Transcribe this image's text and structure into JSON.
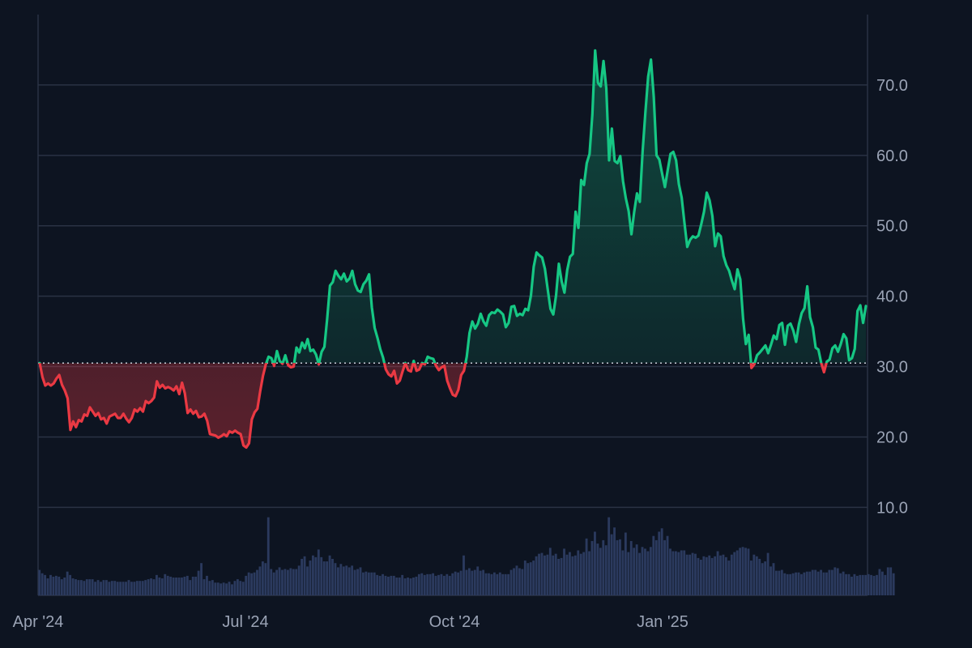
{
  "chart_data": {
    "type": "area",
    "title": "",
    "xlabel": "",
    "ylabel": "",
    "x_tick_labels": [
      "Apr '24",
      "Jul '24",
      "Oct '24",
      "Jan '25"
    ],
    "y_tick_labels": [
      "10.0",
      "20.0",
      "30.0",
      "40.0",
      "50.0",
      "60.0",
      "70.0"
    ],
    "y_ticks": [
      10,
      20,
      30,
      40,
      50,
      60,
      70
    ],
    "ylim": [
      -2.5,
      80
    ],
    "baseline": 30.5,
    "grid": true,
    "y_axis_side": "right",
    "colors": {
      "above": "#16c784",
      "below": "#ea3943",
      "grid": "#2a3244",
      "volume": "#2b3a5e",
      "baseline": "#c9ced8",
      "background": "#0d1421"
    },
    "series": [
      {
        "values": [
          30.5,
          28.5,
          27.3,
          27.6,
          27.3,
          27.6,
          28.3,
          28.8,
          27.4,
          26.6,
          25.5,
          21.0,
          22.2,
          21.4,
          22.4,
          22.2,
          23.2,
          23.0,
          24.2,
          23.6,
          23.0,
          23.4,
          22.5,
          22.7,
          21.9,
          22.9,
          23.1,
          23.3,
          22.7,
          22.7,
          23.3,
          22.6,
          22.1,
          22.7,
          23.9,
          23.6,
          24.1,
          23.6,
          25.1,
          24.8,
          25.1,
          25.6,
          27.9,
          27.0,
          27.4,
          26.9,
          27.1,
          26.9,
          26.6,
          27.2,
          26.1,
          27.7,
          26.2,
          23.4,
          23.9,
          23.3,
          23.7,
          22.8,
          22.9,
          23.3,
          22.3,
          20.4,
          20.3,
          20.2,
          19.9,
          20.1,
          20.4,
          20.1,
          20.8,
          20.6,
          20.9,
          20.6,
          20.4,
          18.8,
          18.5,
          19.1,
          22.5,
          23.5,
          24.0,
          26.5,
          28.7,
          30.3,
          31.4,
          31.2,
          30.1,
          32.2,
          30.8,
          30.4,
          31.6,
          30.2,
          29.9,
          30.0,
          32.7,
          32.0,
          33.4,
          32.6,
          33.9,
          32.2,
          32.4,
          31.7,
          30.3,
          32.1,
          32.8,
          36.8,
          41.5,
          42.0,
          43.6,
          42.9,
          42.4,
          43.2,
          42.1,
          42.5,
          43.6,
          41.7,
          40.8,
          40.6,
          41.7,
          42.2,
          43.1,
          38.4,
          35.5,
          34.1,
          32.5,
          31.3,
          29.6,
          28.9,
          28.6,
          29.4,
          27.6,
          28.0,
          29.3,
          30.5,
          29.5,
          29.3,
          30.8,
          29.4,
          29.6,
          30.5,
          30.3,
          31.4,
          31.2,
          31.1,
          30.1,
          29.5,
          29.9,
          30.1,
          28.0,
          26.9,
          26.0,
          25.8,
          26.7,
          28.8,
          29.4,
          31.4,
          34.8,
          36.4,
          35.4,
          36.1,
          37.5,
          36.4,
          35.8,
          37.3,
          37.7,
          37.6,
          38.1,
          37.8,
          37.4,
          35.6,
          36.2,
          38.5,
          38.6,
          37.2,
          37.5,
          37.3,
          38.2,
          38.0,
          40.1,
          44.2,
          46.2,
          45.8,
          45.5,
          43.9,
          41.0,
          38.2,
          37.4,
          40.1,
          44.6,
          42.1,
          40.5,
          43.7,
          45.6,
          46.0,
          52.0,
          49.7,
          56.5,
          55.8,
          58.9,
          60.2,
          65.8,
          74.9,
          70.3,
          69.8,
          73.4,
          69.5,
          59.3,
          63.8,
          59.2,
          58.9,
          59.9,
          56.3,
          53.9,
          52.1,
          48.8,
          52.0,
          54.6,
          53.4,
          60.5,
          66.1,
          71.2,
          73.6,
          68.3,
          60.0,
          59.4,
          57.4,
          55.5,
          57.9,
          60.2,
          60.5,
          59.3,
          55.9,
          54.0,
          50.4,
          47.0,
          48.0,
          48.5,
          48.3,
          48.6,
          50.2,
          52.0,
          54.7,
          53.6,
          51.4,
          47.1,
          48.9,
          48.5,
          45.7,
          44.4,
          43.6,
          42.2,
          41.0,
          43.8,
          42.4,
          36.8,
          33.2,
          34.5,
          29.8,
          30.3,
          31.6,
          32.0,
          32.5,
          33.0,
          31.9,
          33.1,
          34.4,
          33.9,
          35.9,
          36.2,
          33.1,
          35.8,
          36.1,
          35.1,
          33.5,
          36.0,
          37.6,
          38.3,
          41.4,
          37.0,
          35.6,
          32.7,
          32.4,
          30.5,
          29.2,
          30.7,
          31.0,
          32.6,
          33.0,
          32.1,
          33.2,
          34.6,
          34.0,
          30.9,
          31.2,
          32.5,
          37.9,
          38.7,
          36.2,
          38.6
        ]
      }
    ],
    "volume": [
      3.0,
      2.6,
      2.4,
      2.0,
      2.4,
      2.2,
      2.3,
      2.2,
      1.9,
      2.1,
      2.8,
      2.4,
      2.0,
      1.9,
      1.8,
      1.8,
      1.7,
      1.9,
      1.9,
      1.9,
      1.6,
      1.8,
      1.6,
      1.8,
      1.8,
      1.6,
      1.7,
      1.7,
      1.6,
      1.6,
      1.6,
      1.6,
      1.8,
      1.6,
      1.6,
      1.7,
      1.7,
      1.7,
      1.8,
      1.9,
      2.0,
      1.9,
      2.4,
      2.1,
      2.0,
      2.5,
      2.3,
      2.2,
      2.1,
      2.1,
      2.1,
      2.1,
      2.2,
      2.3,
      1.8,
      2.2,
      2.2,
      2.9,
      3.8,
      1.9,
      2.3,
      1.7,
      1.8,
      1.5,
      1.5,
      1.4,
      1.5,
      1.4,
      1.6,
      1.3,
      1.7,
      1.9,
      1.7,
      1.6,
      2.3,
      2.7,
      2.6,
      2.7,
      3.0,
      3.4,
      4.0,
      3.8,
      9.2,
      3.1,
      2.7,
      3.0,
      3.3,
      3.0,
      3.1,
      3.0,
      3.2,
      3.1,
      3.1,
      3.5,
      4.3,
      4.6,
      3.4,
      4.1,
      4.7,
      4.5,
      5.4,
      4.5,
      4.0,
      4.0,
      4.7,
      4.3,
      3.8,
      3.3,
      3.7,
      3.4,
      3.5,
      3.3,
      3.5,
      3.0,
      3.1,
      3.3,
      2.7,
      2.8,
      2.7,
      2.7,
      2.7,
      2.4,
      2.3,
      2.5,
      2.3,
      2.2,
      2.3,
      2.3,
      2.1,
      2.1,
      2.4,
      2.0,
      2.1,
      2.0,
      2.1,
      2.2,
      2.5,
      2.6,
      2.4,
      2.5,
      2.5,
      2.6,
      2.3,
      2.4,
      2.5,
      2.3,
      2.5,
      2.3,
      2.6,
      2.8,
      2.7,
      2.9,
      4.7,
      3.0,
      3.2,
      2.9,
      3.0,
      3.4,
      2.9,
      3.0,
      2.6,
      2.6,
      2.5,
      2.7,
      2.5,
      2.7,
      2.5,
      2.5,
      2.5,
      3.0,
      3.2,
      3.5,
      3.2,
      3.1,
      4.1,
      3.8,
      3.9,
      4.1,
      4.6,
      4.9,
      5.0,
      4.7,
      4.8,
      5.6,
      4.7,
      4.9,
      4.3,
      4.4,
      5.5,
      4.8,
      5.1,
      4.6,
      4.7,
      5.3,
      4.9,
      5.1,
      6.7,
      5.2,
      6.4,
      7.5,
      6.1,
      5.6,
      6.5,
      5.9,
      9.2,
      7.2,
      8.0,
      6.5,
      6.6,
      5.3,
      7.4,
      5.1,
      6.4,
      5.6,
      6.0,
      5.0,
      5.7,
      5.5,
      5.2,
      5.7,
      7.0,
      6.5,
      7.5,
      7.9,
      6.5,
      7.0,
      5.5,
      5.2,
      5.2,
      5.1,
      5.3,
      5.3,
      4.8,
      4.8,
      5.0,
      4.9,
      4.4,
      4.2,
      4.6,
      4.5,
      4.7,
      4.4,
      4.6,
      5.2,
      4.7,
      4.8,
      4.5,
      4.1,
      4.8,
      5.1,
      5.3,
      5.6,
      5.7,
      5.6,
      5.5,
      4.1,
      4.8,
      4.6,
      4.3,
      3.8,
      4.0,
      5.0,
      3.4,
      3.8,
      2.9,
      2.9,
      3.0,
      2.6,
      2.5,
      2.5,
      2.6,
      2.7,
      2.7,
      2.5,
      2.7,
      2.8,
      2.8,
      3.0,
      3.0,
      2.8,
      3.0,
      2.7,
      2.7,
      3.0,
      3.0,
      3.3,
      3.2,
      2.6,
      2.8,
      2.5,
      2.5,
      2.2,
      2.5,
      2.3,
      2.4,
      2.4,
      2.4,
      2.5,
      2.4,
      2.3,
      2.4,
      3.1,
      2.8,
      2.4,
      3.3,
      3.3,
      2.6
    ]
  }
}
